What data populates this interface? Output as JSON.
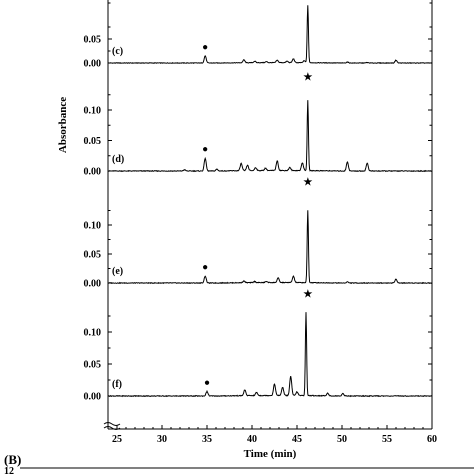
{
  "chart_data": {
    "type": "line",
    "xlabel": "Time (min)",
    "ylabel": "Absorbance",
    "xlim": [
      24,
      60
    ],
    "x_ticks": [
      "25",
      "30",
      "35",
      "40",
      "45",
      "50",
      "55",
      "60"
    ],
    "y_tick_labels": {
      "c": [
        "0.00",
        "0.05"
      ],
      "d": [
        "0.00",
        "0.05",
        "0.10"
      ],
      "e": [
        "0.00",
        "0.05",
        "0.10"
      ],
      "f": [
        "0.00",
        "0.05",
        "0.10"
      ]
    },
    "markers": {
      "star": "★",
      "dot": "●"
    },
    "panels": [
      {
        "id": "c",
        "label": "(c)",
        "ylim": [
          -0.006,
          0.09
        ],
        "dot_x": 34.8,
        "star_x": 46.2,
        "peaks": [
          {
            "x": 34.8,
            "y": 0.015
          },
          {
            "x": 39.1,
            "y": 0.006
          },
          {
            "x": 40.3,
            "y": 0.003
          },
          {
            "x": 41.6,
            "y": 0.002
          },
          {
            "x": 42.8,
            "y": 0.005
          },
          {
            "x": 43.9,
            "y": 0.003
          },
          {
            "x": 44.6,
            "y": 0.008
          },
          {
            "x": 45.8,
            "y": 0.004
          },
          {
            "x": 46.2,
            "y": 0.12
          },
          {
            "x": 50.6,
            "y": 0.002
          },
          {
            "x": 52.8,
            "y": 0.001
          },
          {
            "x": 56.0,
            "y": 0.006
          }
        ]
      },
      {
        "id": "d",
        "label": "(d)",
        "ylim": [
          -0.006,
          0.13
        ],
        "dot_x": 34.8,
        "star_x": 46.2,
        "peaks": [
          {
            "x": 32.5,
            "y": 0.002
          },
          {
            "x": 34.8,
            "y": 0.021
          },
          {
            "x": 36.1,
            "y": 0.003
          },
          {
            "x": 38.8,
            "y": 0.012
          },
          {
            "x": 39.5,
            "y": 0.009
          },
          {
            "x": 40.4,
            "y": 0.005
          },
          {
            "x": 41.5,
            "y": 0.004
          },
          {
            "x": 42.8,
            "y": 0.016
          },
          {
            "x": 44.2,
            "y": 0.005
          },
          {
            "x": 45.6,
            "y": 0.013
          },
          {
            "x": 46.2,
            "y": 0.115
          },
          {
            "x": 50.6,
            "y": 0.015
          },
          {
            "x": 52.8,
            "y": 0.013
          }
        ]
      },
      {
        "id": "e",
        "label": "(e)",
        "ylim": [
          -0.006,
          0.13
        ],
        "dot_x": 34.8,
        "star_x": 46.2,
        "peaks": [
          {
            "x": 34.8,
            "y": 0.012
          },
          {
            "x": 39.1,
            "y": 0.003
          },
          {
            "x": 40.3,
            "y": 0.002
          },
          {
            "x": 41.6,
            "y": 0.002
          },
          {
            "x": 42.9,
            "y": 0.008
          },
          {
            "x": 44.6,
            "y": 0.011
          },
          {
            "x": 46.2,
            "y": 0.125
          },
          {
            "x": 50.6,
            "y": 0.002
          },
          {
            "x": 56.0,
            "y": 0.007
          }
        ]
      },
      {
        "id": "f",
        "label": "(f)",
        "ylim": [
          -0.006,
          0.13
        ],
        "dot_x": 35.0,
        "star_x": 46.0,
        "peaks": [
          {
            "x": 35.0,
            "y": 0.007
          },
          {
            "x": 39.2,
            "y": 0.009
          },
          {
            "x": 40.5,
            "y": 0.005
          },
          {
            "x": 42.5,
            "y": 0.018
          },
          {
            "x": 43.4,
            "y": 0.013
          },
          {
            "x": 44.3,
            "y": 0.03
          },
          {
            "x": 45.0,
            "y": 0.006
          },
          {
            "x": 46.0,
            "y": 0.13
          },
          {
            "x": 48.4,
            "y": 0.004
          },
          {
            "x": 50.1,
            "y": 0.004
          }
        ]
      }
    ]
  },
  "section_b": {
    "label": "(B)",
    "y_top_label": "12"
  }
}
